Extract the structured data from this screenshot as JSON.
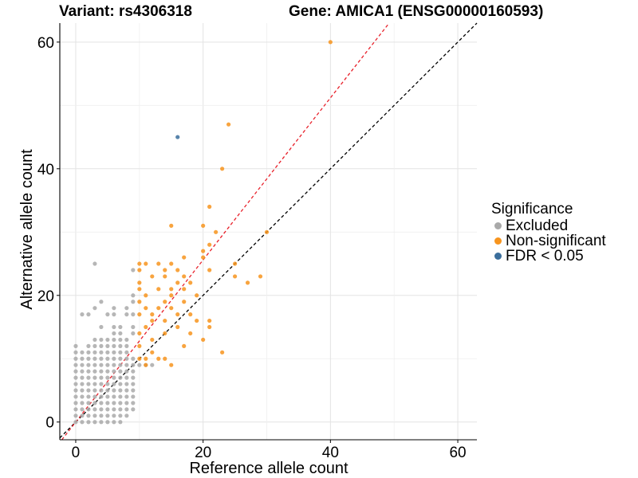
{
  "title_left": "Variant: rs4306318",
  "title_right": "Gene: AMICA1 (ENSG00000160593)",
  "legend": {
    "title": "Significance",
    "items": [
      {
        "label": "Excluded",
        "color": "#a9a9a9"
      },
      {
        "label": "Non-significant",
        "color": "#f7941d"
      },
      {
        "label": "FDR < 0.05",
        "color": "#3b6e9c"
      }
    ]
  },
  "chart_data": {
    "type": "scatter",
    "xlabel": "Reference allele count",
    "ylabel": "Alternative allele count",
    "xlim": [
      -2.5,
      63
    ],
    "ylim": [
      -2.8,
      63
    ],
    "xticks": [
      0,
      20,
      40,
      60
    ],
    "yticks": [
      0,
      20,
      40,
      60
    ],
    "grid": true,
    "legend_position": "right",
    "reference_lines": [
      {
        "name": "y = x",
        "slope": 1,
        "intercept": 0,
        "color": "#000000",
        "style": "dashed"
      },
      {
        "name": "fitted",
        "slope": 1.28,
        "intercept": 0,
        "color": "#e8202a",
        "style": "dashed"
      }
    ],
    "series": [
      {
        "name": "Excluded",
        "color": "#a9a9a9",
        "points": [
          [
            0,
            0
          ],
          [
            1,
            0
          ],
          [
            2,
            0
          ],
          [
            3,
            0
          ],
          [
            4,
            0
          ],
          [
            5,
            0
          ],
          [
            6,
            0
          ],
          [
            7,
            0
          ],
          [
            0,
            1
          ],
          [
            1,
            1
          ],
          [
            2,
            1
          ],
          [
            3,
            1
          ],
          [
            4,
            1
          ],
          [
            5,
            1
          ],
          [
            6,
            1
          ],
          [
            7,
            1
          ],
          [
            8,
            1
          ],
          [
            0,
            2
          ],
          [
            1,
            2
          ],
          [
            2,
            2
          ],
          [
            3,
            2
          ],
          [
            4,
            2
          ],
          [
            5,
            2
          ],
          [
            6,
            2
          ],
          [
            7,
            2
          ],
          [
            8,
            2
          ],
          [
            9,
            2
          ],
          [
            0,
            3
          ],
          [
            1,
            3
          ],
          [
            2,
            3
          ],
          [
            3,
            3
          ],
          [
            4,
            3
          ],
          [
            5,
            3
          ],
          [
            6,
            3
          ],
          [
            7,
            3
          ],
          [
            8,
            3
          ],
          [
            9,
            3
          ],
          [
            0,
            4
          ],
          [
            1,
            4
          ],
          [
            2,
            4
          ],
          [
            3,
            4
          ],
          [
            4,
            4
          ],
          [
            5,
            4
          ],
          [
            6,
            4
          ],
          [
            7,
            4
          ],
          [
            8,
            4
          ],
          [
            9,
            4
          ],
          [
            0,
            5
          ],
          [
            1,
            5
          ],
          [
            2,
            5
          ],
          [
            3,
            5
          ],
          [
            4,
            5
          ],
          [
            5,
            5
          ],
          [
            6,
            5
          ],
          [
            7,
            5
          ],
          [
            8,
            5
          ],
          [
            9,
            5
          ],
          [
            0,
            6
          ],
          [
            1,
            6
          ],
          [
            2,
            6
          ],
          [
            3,
            6
          ],
          [
            4,
            6
          ],
          [
            5,
            6
          ],
          [
            6,
            6
          ],
          [
            7,
            6
          ],
          [
            8,
            6
          ],
          [
            9,
            6
          ],
          [
            0,
            7
          ],
          [
            1,
            7
          ],
          [
            2,
            7
          ],
          [
            3,
            7
          ],
          [
            4,
            7
          ],
          [
            5,
            7
          ],
          [
            6,
            7
          ],
          [
            7,
            7
          ],
          [
            8,
            7
          ],
          [
            9,
            7
          ],
          [
            0,
            8
          ],
          [
            1,
            8
          ],
          [
            2,
            8
          ],
          [
            3,
            8
          ],
          [
            4,
            8
          ],
          [
            5,
            8
          ],
          [
            6,
            8
          ],
          [
            7,
            8
          ],
          [
            8,
            8
          ],
          [
            9,
            8
          ],
          [
            0,
            9
          ],
          [
            1,
            9
          ],
          [
            2,
            9
          ],
          [
            3,
            9
          ],
          [
            4,
            9
          ],
          [
            5,
            9
          ],
          [
            6,
            9
          ],
          [
            7,
            9
          ],
          [
            8,
            9
          ],
          [
            9,
            9
          ],
          [
            10,
            9
          ],
          [
            11,
            9
          ],
          [
            12,
            9
          ],
          [
            0,
            10
          ],
          [
            1,
            10
          ],
          [
            2,
            10
          ],
          [
            3,
            10
          ],
          [
            4,
            10
          ],
          [
            5,
            10
          ],
          [
            6,
            10
          ],
          [
            7,
            10
          ],
          [
            8,
            10
          ],
          [
            9,
            10
          ],
          [
            0,
            11
          ],
          [
            1,
            11
          ],
          [
            2,
            11
          ],
          [
            3,
            11
          ],
          [
            4,
            11
          ],
          [
            5,
            11
          ],
          [
            6,
            11
          ],
          [
            7,
            11
          ],
          [
            8,
            11
          ],
          [
            0,
            12
          ],
          [
            2,
            12
          ],
          [
            3,
            12
          ],
          [
            4,
            12
          ],
          [
            5,
            12
          ],
          [
            6,
            12
          ],
          [
            7,
            12
          ],
          [
            8,
            12
          ],
          [
            3,
            13
          ],
          [
            4,
            13
          ],
          [
            5,
            13
          ],
          [
            6,
            13
          ],
          [
            7,
            13
          ],
          [
            8,
            13
          ],
          [
            6,
            14
          ],
          [
            7,
            14
          ],
          [
            9,
            14
          ],
          [
            4,
            15
          ],
          [
            6,
            15
          ],
          [
            7,
            15
          ],
          [
            9,
            15
          ],
          [
            2,
            17
          ],
          [
            5,
            17
          ],
          [
            6,
            17
          ],
          [
            8,
            17
          ],
          [
            9,
            17
          ],
          [
            1,
            17
          ],
          [
            3,
            18
          ],
          [
            6,
            18
          ],
          [
            8,
            18
          ],
          [
            9,
            19
          ],
          [
            4,
            19
          ],
          [
            9,
            20
          ],
          [
            9,
            24
          ],
          [
            3,
            25
          ]
        ]
      },
      {
        "name": "Non-significant",
        "color": "#f7941d",
        "points": [
          [
            40,
            60
          ],
          [
            24,
            47
          ],
          [
            23,
            40
          ],
          [
            21,
            34
          ],
          [
            20,
            31
          ],
          [
            15,
            31
          ],
          [
            22,
            30
          ],
          [
            30,
            30
          ],
          [
            21,
            28
          ],
          [
            20,
            27
          ],
          [
            20,
            26
          ],
          [
            17,
            26
          ],
          [
            10,
            25
          ],
          [
            11,
            25
          ],
          [
            13,
            25
          ],
          [
            15,
            25
          ],
          [
            25,
            25
          ],
          [
            10,
            24
          ],
          [
            14,
            24
          ],
          [
            16,
            24
          ],
          [
            21,
            24
          ],
          [
            12,
            23
          ],
          [
            14,
            23
          ],
          [
            17,
            23
          ],
          [
            25,
            23
          ],
          [
            29,
            23
          ],
          [
            10,
            22
          ],
          [
            16,
            22
          ],
          [
            18,
            22
          ],
          [
            27,
            22
          ],
          [
            10,
            21
          ],
          [
            13,
            21
          ],
          [
            15,
            21
          ],
          [
            17,
            21
          ],
          [
            11,
            20
          ],
          [
            15,
            20
          ],
          [
            19,
            20
          ],
          [
            10,
            19
          ],
          [
            14,
            19
          ],
          [
            17,
            19
          ],
          [
            11,
            18
          ],
          [
            13,
            18
          ],
          [
            15,
            18
          ],
          [
            10,
            17
          ],
          [
            12,
            17
          ],
          [
            16,
            17
          ],
          [
            18,
            17
          ],
          [
            12,
            16
          ],
          [
            14,
            16
          ],
          [
            19,
            16
          ],
          [
            21,
            16
          ],
          [
            11,
            15
          ],
          [
            16,
            15
          ],
          [
            21,
            15
          ],
          [
            10,
            14
          ],
          [
            14,
            14
          ],
          [
            18,
            14
          ],
          [
            12,
            13
          ],
          [
            20,
            13
          ],
          [
            10,
            12
          ],
          [
            17,
            12
          ],
          [
            12,
            11
          ],
          [
            23,
            11
          ],
          [
            13,
            10
          ],
          [
            10,
            10
          ],
          [
            11,
            10
          ],
          [
            14,
            10
          ],
          [
            15,
            9
          ],
          [
            11,
            9
          ]
        ]
      },
      {
        "name": "FDR < 0.05",
        "color": "#3b6e9c",
        "points": [
          [
            16,
            45
          ]
        ]
      }
    ]
  }
}
